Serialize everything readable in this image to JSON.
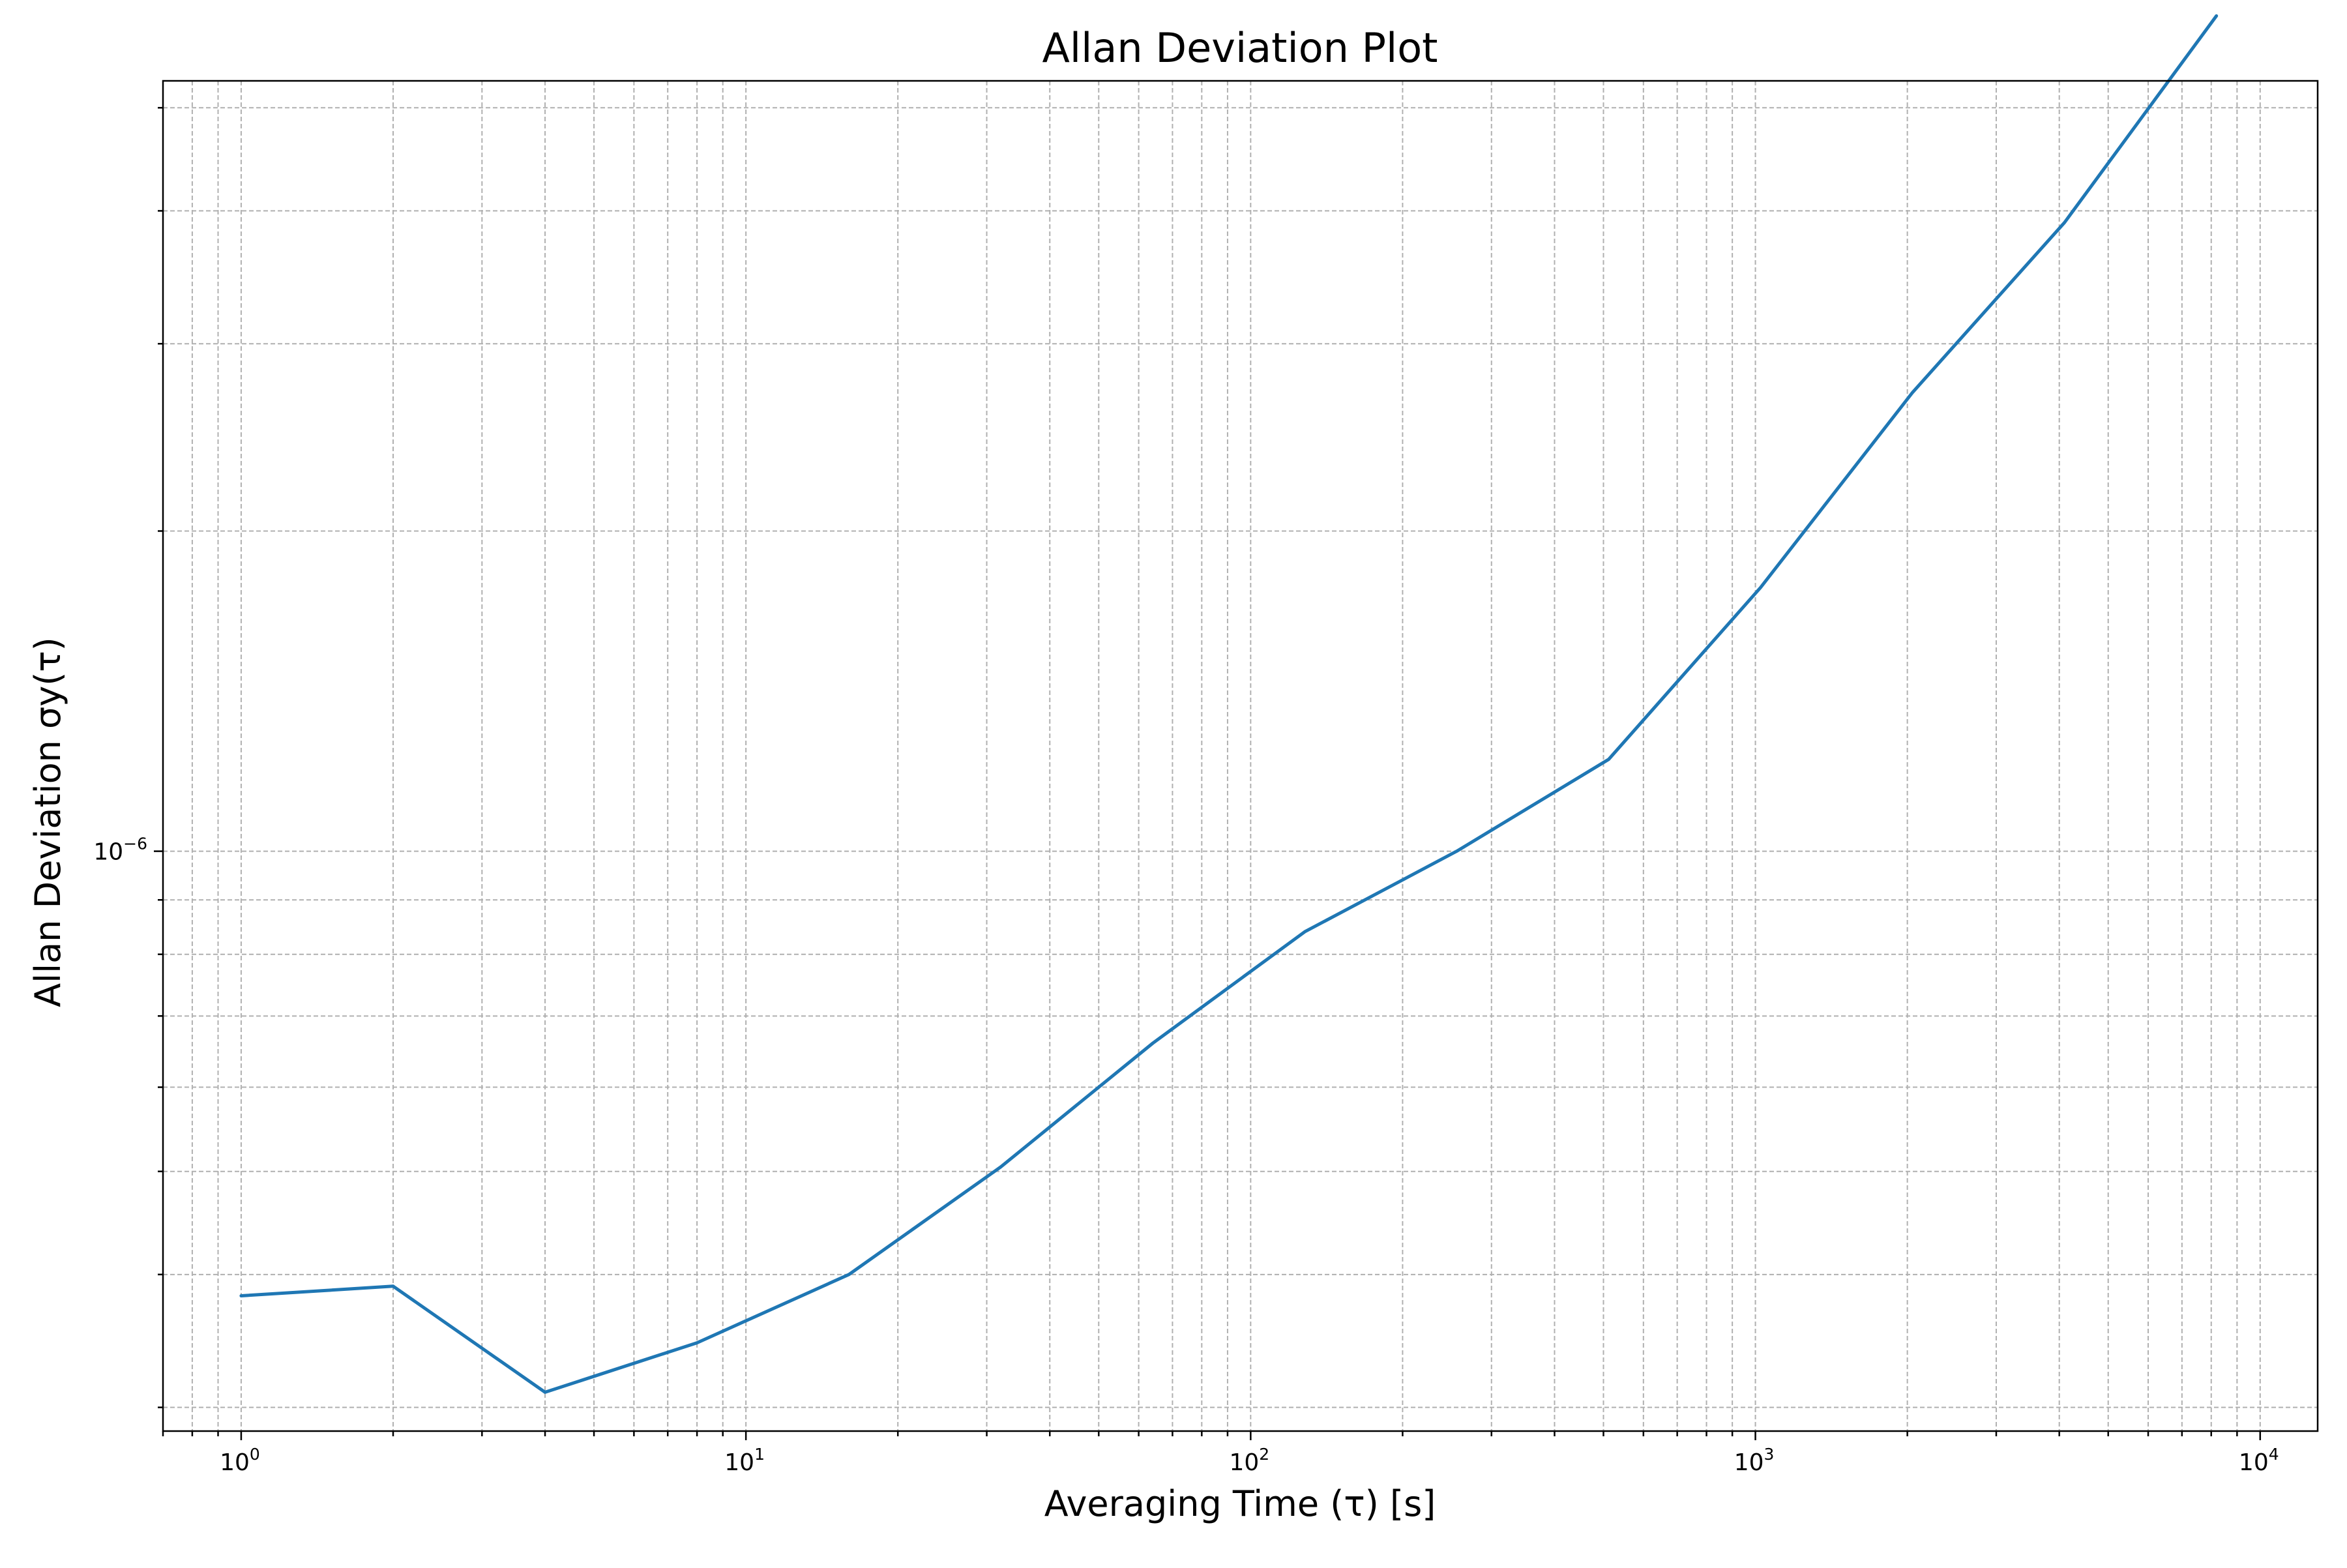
{
  "chart_data": {
    "type": "line",
    "title": "Allan Deviation Plot",
    "xlabel": "Averaging Time (τ) [s]",
    "ylabel": "Allan Deviation σy(τ)",
    "x_scale": "log",
    "y_scale": "log",
    "xlim": [
      0.7,
      13000
    ],
    "ylim": [
      2.85e-07,
      5.3e-06
    ],
    "x_ticks": [
      {
        "value": 1,
        "label": "10",
        "exp": "0"
      },
      {
        "value": 10,
        "label": "10",
        "exp": "1"
      },
      {
        "value": 100,
        "label": "10",
        "exp": "2"
      },
      {
        "value": 1000,
        "label": "10",
        "exp": "3"
      },
      {
        "value": 10000,
        "label": "10",
        "exp": "4"
      }
    ],
    "y_ticks": [
      {
        "value": 1e-06,
        "label": "10",
        "exp": "−6"
      }
    ],
    "grid": true,
    "series": [
      {
        "color": "#1f77b4",
        "x": [
          1,
          2,
          4,
          8,
          16,
          32,
          64,
          128,
          256,
          512,
          1024,
          2048,
          4096,
          8192
        ],
        "y": [
          3.82e-07,
          3.9e-07,
          3.1e-07,
          3.45e-07,
          4e-07,
          5.05e-07,
          6.6e-07,
          8.4e-07,
          1e-06,
          1.22e-06,
          1.77e-06,
          2.7e-06,
          3.9e-06,
          6.1e-06
        ]
      }
    ]
  }
}
